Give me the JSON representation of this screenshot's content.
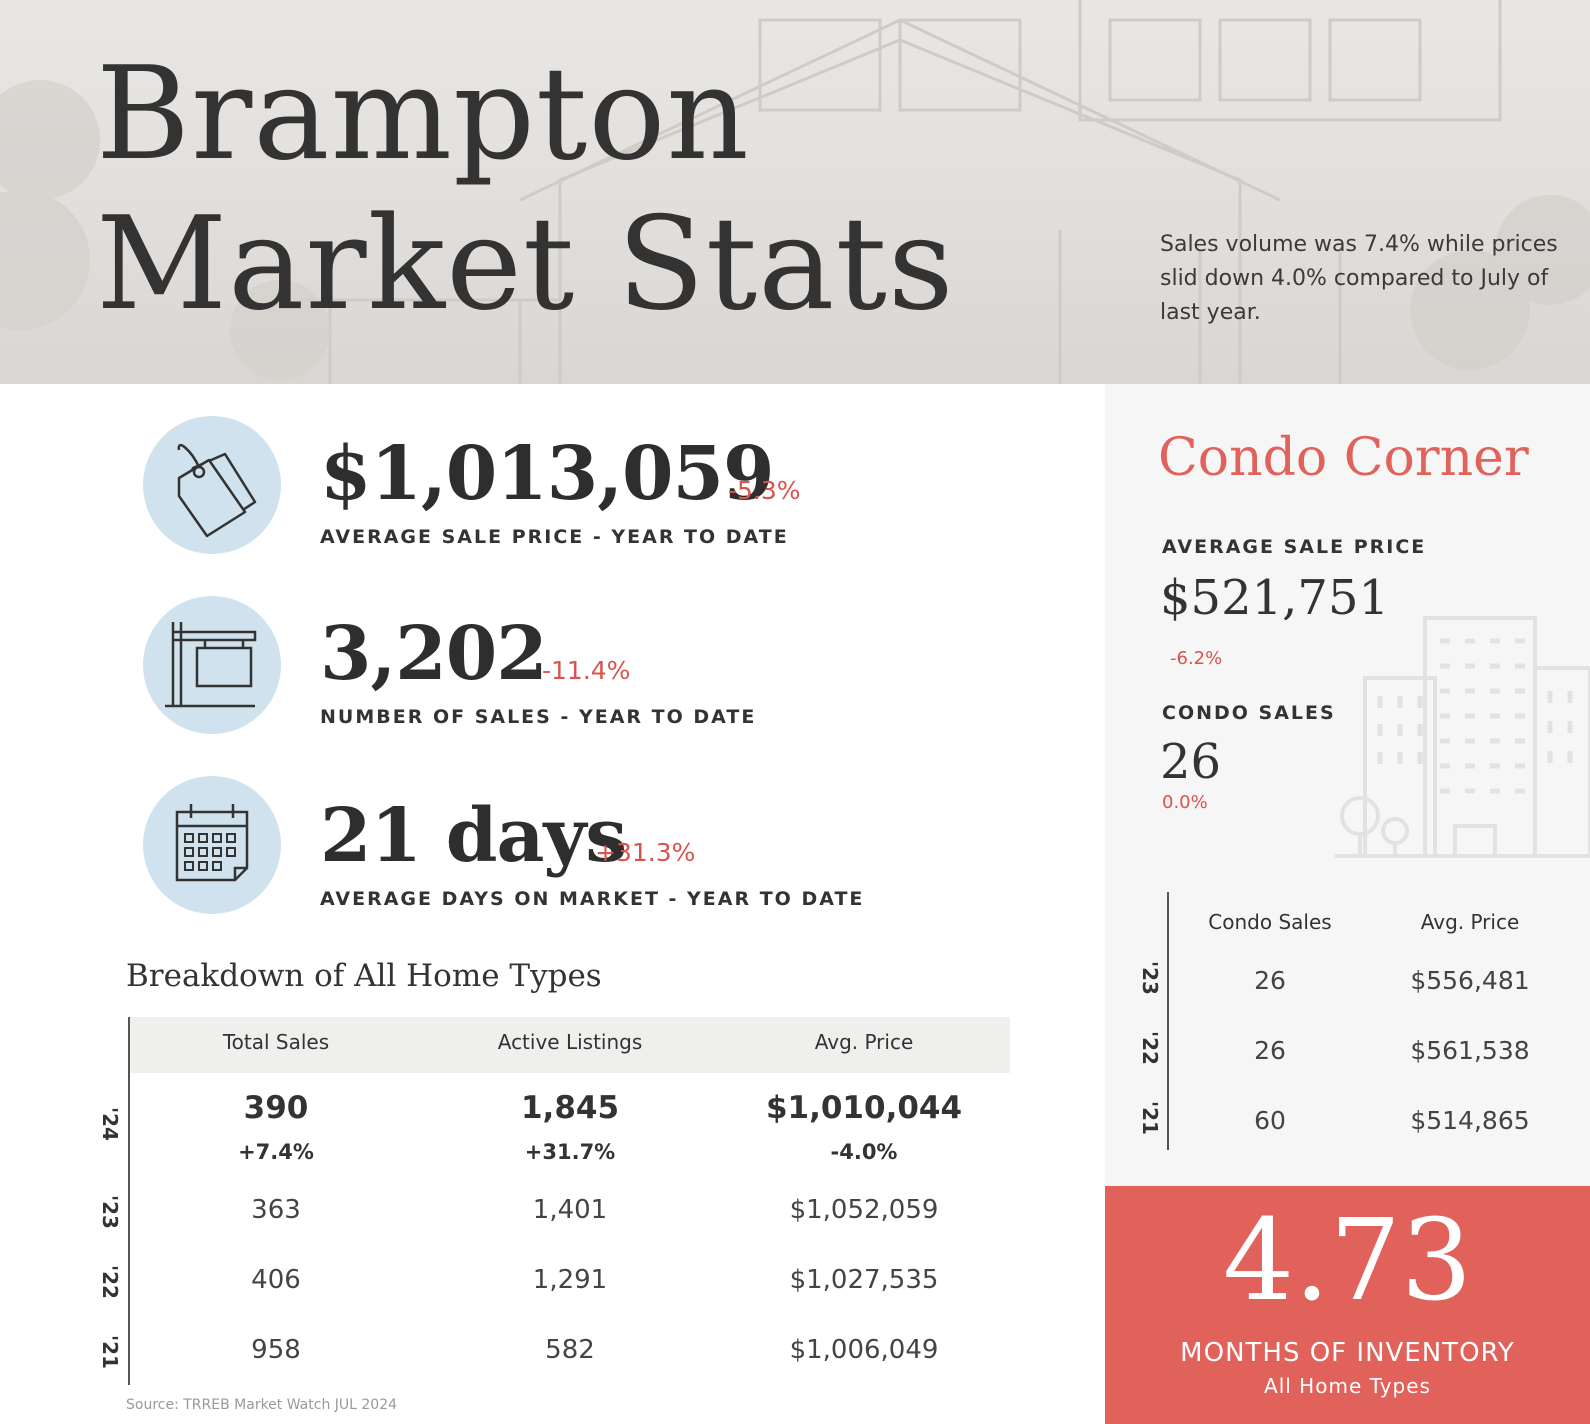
{
  "header": {
    "title_line1": "Brampton",
    "title_line2": "Market Stats",
    "summary": "Sales volume was 7.4% while prices slid down 4.0% compared to July of last year."
  },
  "stats": [
    {
      "icon": "price-tag-icon",
      "value": "$1,013,059",
      "change": "-5.3%",
      "label": "AVERAGE SALE PRICE - YEAR TO DATE"
    },
    {
      "icon": "sale-sign-icon",
      "value": "3,202",
      "change": "-11.4%",
      "label": "NUMBER OF SALES - YEAR TO DATE"
    },
    {
      "icon": "calendar-icon",
      "value": "21 days",
      "change": "+31.3%",
      "label": "AVERAGE DAYS ON MARKET - YEAR TO DATE"
    }
  ],
  "breakdown": {
    "title": "Breakdown of All Home Types",
    "columns": [
      "Total Sales",
      "Active Listings",
      "Avg. Price"
    ],
    "rows": [
      {
        "year": "'24",
        "values": [
          "390",
          "1,845",
          "$1,010,044"
        ],
        "changes": [
          "+7.4%",
          "+31.7%",
          "-4.0%"
        ]
      },
      {
        "year": "'23",
        "values": [
          "363",
          "1,401",
          "$1,052,059"
        ]
      },
      {
        "year": "'22",
        "values": [
          "406",
          "1,291",
          "$1,027,535"
        ]
      },
      {
        "year": "'21",
        "values": [
          "958",
          "582",
          "$1,006,049"
        ]
      }
    ],
    "source": "Source: TRREB Market Watch JUL 2024"
  },
  "condo": {
    "title": "Condo Corner",
    "avg_price_label": "AVERAGE SALE PRICE",
    "avg_price": "$521,751",
    "avg_price_change": "-6.2%",
    "sales_label": "CONDO SALES",
    "sales": "26",
    "sales_change": "0.0%",
    "columns": [
      "Condo Sales",
      "Avg. Price"
    ],
    "rows": [
      {
        "year": "'23",
        "values": [
          "26",
          "$556,481"
        ]
      },
      {
        "year": "'22",
        "values": [
          "26",
          "$561,538"
        ]
      },
      {
        "year": "'21",
        "values": [
          "60",
          "$514,865"
        ]
      }
    ]
  },
  "inventory": {
    "value": "4.73",
    "label": "MONTHS OF INVENTORY",
    "sublabel": "All Home Types"
  },
  "colors": {
    "accent": "#e0625a",
    "negative": "#d9534f",
    "icon_circle": "#cfe2ed",
    "text": "#333333"
  }
}
